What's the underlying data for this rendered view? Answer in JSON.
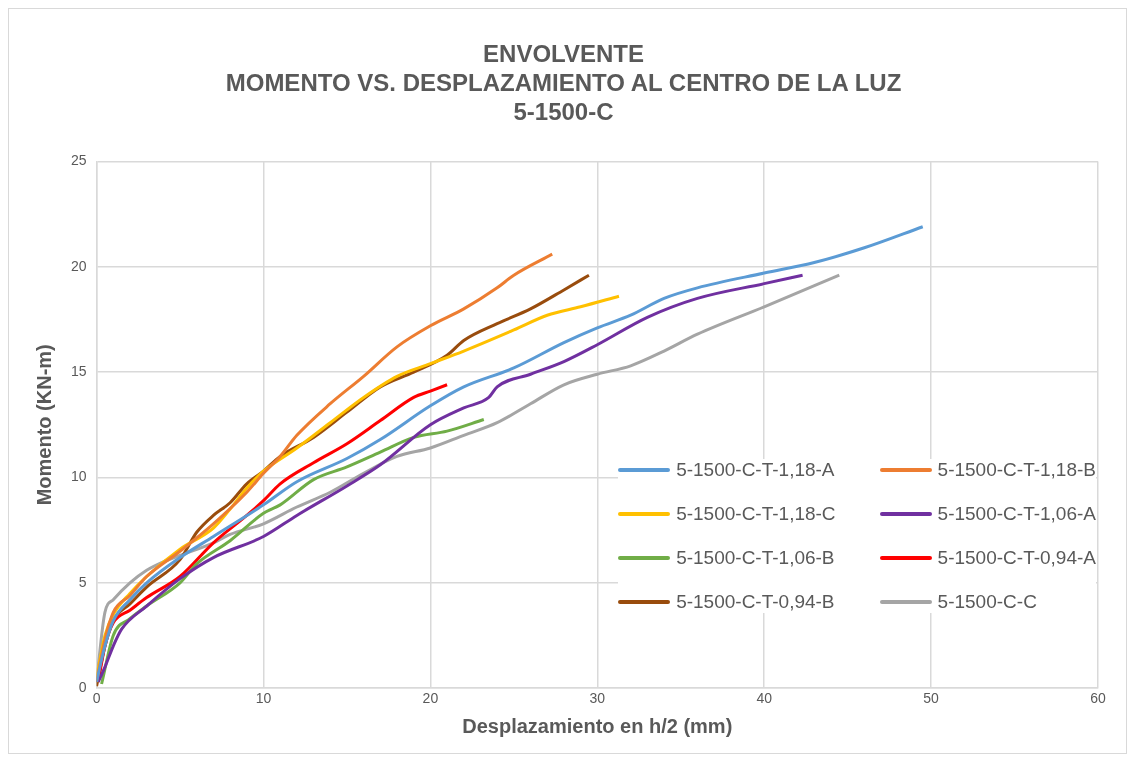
{
  "chart_data": {
    "type": "line",
    "title": [
      "ENVOLVENTE",
      "MOMENTO VS. DESPLAZAMIENTO AL CENTRO DE LA LUZ",
      "5-1500-C"
    ],
    "xlabel": "Desplazamiento en h/2 (mm)",
    "ylabel": "Momento (KN-m)",
    "xlim": [
      0,
      60
    ],
    "xticks": [
      0,
      10,
      20,
      30,
      40,
      50,
      60
    ],
    "ylim": [
      0,
      25
    ],
    "yticks": [
      0,
      5,
      10,
      15,
      20,
      25
    ],
    "grid": true,
    "legend": "bottom right",
    "marker": "none",
    "line_style": "solid",
    "series": [
      {
        "name": "5-1500-C-T-1,18-A",
        "color": "#5b9bd5",
        "x": [
          0,
          0.5,
          1,
          2,
          3,
          5,
          7,
          10,
          12,
          15,
          17,
          20,
          22,
          25,
          28,
          30,
          32,
          34,
          36,
          40,
          43,
          46,
          49.5
        ],
        "values": [
          0.3,
          2,
          3.2,
          4.2,
          5,
          6.2,
          7.2,
          8.7,
          9.8,
          10.9,
          11.8,
          13.4,
          14.3,
          15.2,
          16.4,
          17.1,
          17.7,
          18.5,
          19,
          19.7,
          20.2,
          20.9,
          21.9
        ]
      },
      {
        "name": "5-1500-C-T-1,18-B",
        "color": "#ed7d31",
        "x": [
          0,
          0.5,
          1,
          2,
          3,
          5,
          7,
          9,
          10,
          11,
          12,
          14,
          16,
          18,
          20,
          22,
          24,
          25,
          27.3
        ],
        "values": [
          0.3,
          2.3,
          3.6,
          4.4,
          5.3,
          6.5,
          7.8,
          9.3,
          10.2,
          11,
          12,
          13.5,
          14.8,
          16.2,
          17.2,
          18,
          19,
          19.6,
          20.6
        ]
      },
      {
        "name": "5-1500-C-T-1,18-C",
        "color": "#ffc000",
        "x": [
          0,
          0.5,
          1,
          2,
          3,
          5,
          7,
          8,
          9,
          10,
          12,
          14,
          16,
          18,
          20,
          22,
          25,
          27,
          29,
          31.3
        ],
        "values": [
          0.5,
          2.5,
          3.5,
          4.5,
          5.3,
          6.6,
          7.6,
          8.5,
          9.5,
          10.3,
          11.4,
          12.6,
          13.8,
          14.8,
          15.4,
          16,
          17,
          17.7,
          18.1,
          18.6
        ]
      },
      {
        "name": "5-1500-C-T-1,06-A",
        "color": "#7030a0",
        "x": [
          0.1,
          0.5,
          1,
          1.5,
          3,
          5,
          7,
          10,
          12,
          15,
          17,
          20,
          22,
          23.5,
          24,
          26,
          28,
          30,
          33,
          36,
          40,
          42.3
        ],
        "values": [
          0.3,
          1,
          2,
          2.8,
          3.9,
          5.2,
          6.2,
          7.2,
          8.2,
          9.6,
          10.6,
          12.5,
          13.3,
          13.8,
          14.3,
          14.9,
          15.5,
          16.3,
          17.6,
          18.5,
          19.2,
          19.6
        ]
      },
      {
        "name": "5-1500-C-T-1,06-B",
        "color": "#70ad47",
        "x": [
          0.3,
          1,
          2,
          3,
          5,
          6,
          8,
          10,
          11,
          13,
          15,
          17,
          19,
          21,
          23.2
        ],
        "values": [
          0.2,
          2.5,
          3.3,
          3.9,
          5,
          5.9,
          7,
          8.3,
          8.7,
          9.9,
          10.5,
          11.2,
          11.9,
          12.2,
          12.75
        ]
      },
      {
        "name": "5-1500-C-T-0,94-A",
        "color": "#ff0000",
        "x": [
          0.1,
          0.5,
          1,
          2,
          3,
          5,
          7,
          9,
          10,
          11,
          13,
          15,
          17,
          19,
          20,
          21
        ],
        "values": [
          0.3,
          2,
          3.1,
          3.7,
          4.3,
          5.3,
          6.9,
          8.2,
          8.9,
          9.7,
          10.7,
          11.6,
          12.7,
          13.8,
          14.1,
          14.4
        ]
      },
      {
        "name": "5-1500-C-T-0,94-B",
        "color": "#994c0d",
        "x": [
          0,
          0.5,
          1,
          2,
          3,
          5,
          6,
          7,
          8,
          9,
          10,
          11,
          13,
          15,
          17,
          19,
          21,
          22,
          24,
          26,
          28,
          29.5
        ],
        "values": [
          0.1,
          2,
          3.2,
          4,
          4.8,
          6.1,
          7.4,
          8.2,
          8.8,
          9.7,
          10.3,
          11,
          11.9,
          13.1,
          14.3,
          15,
          15.8,
          16.5,
          17.3,
          18,
          18.9,
          19.6
        ]
      },
      {
        "name": "5-1500-C-C",
        "color": "#a5a5a5",
        "x": [
          0,
          0.5,
          1,
          2,
          3,
          4,
          5,
          7,
          8,
          10,
          12,
          14,
          16,
          18,
          20,
          22,
          24,
          26,
          28,
          30,
          32,
          34,
          36,
          40,
          44.5
        ],
        "values": [
          0.3,
          3.6,
          4.2,
          5,
          5.6,
          6,
          6.3,
          6.9,
          7.3,
          7.8,
          8.6,
          9.3,
          10.2,
          11,
          11.4,
          12,
          12.6,
          13.5,
          14.4,
          14.9,
          15.3,
          16,
          16.8,
          18.1,
          19.6
        ]
      }
    ]
  }
}
